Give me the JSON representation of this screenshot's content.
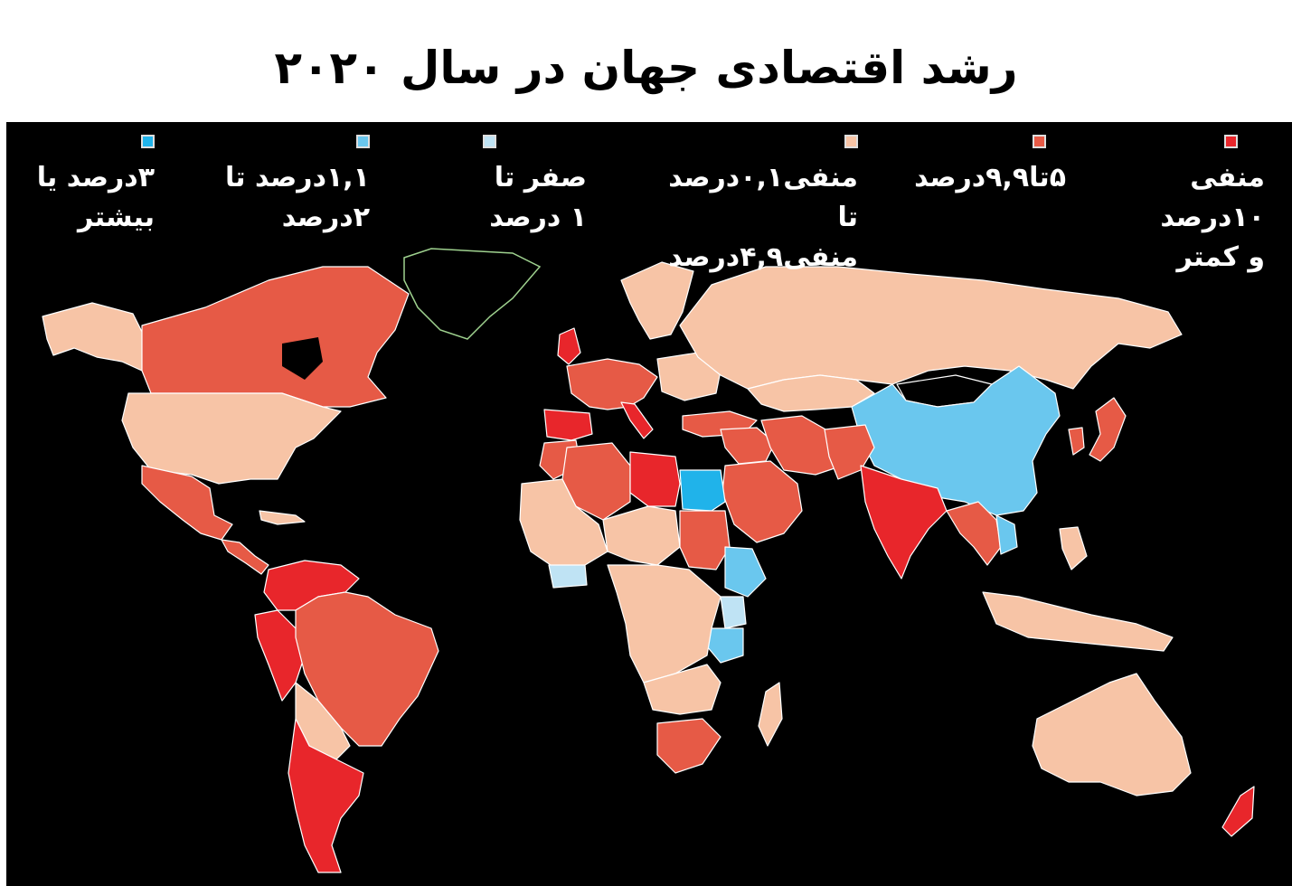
{
  "title": "رشد اقتصادی جهان در سال ۲۰۲۰",
  "legend": [
    {
      "label": "منفی ۱۰درصد\nو کمتر",
      "color": "#e8262b"
    },
    {
      "label": "۵تا۹,۹درصد",
      "color": "#e65a46"
    },
    {
      "label": "منفی۰,۱درصد تا\nمنفی۴,۹درصد",
      "color": "#f7c4a6"
    },
    {
      "label": "صفر تا\n۱ درصد",
      "color": "#bfe3f4"
    },
    {
      "label": "۱,۱درصد تا\n۲درصد",
      "color": "#6ac7ee"
    },
    {
      "label": "۳درصد یا\nبیشتر",
      "color": "#20b3ea"
    }
  ],
  "colors": {
    "background": "#000000",
    "no_data": "#000000",
    "border": "#ffffff"
  }
}
